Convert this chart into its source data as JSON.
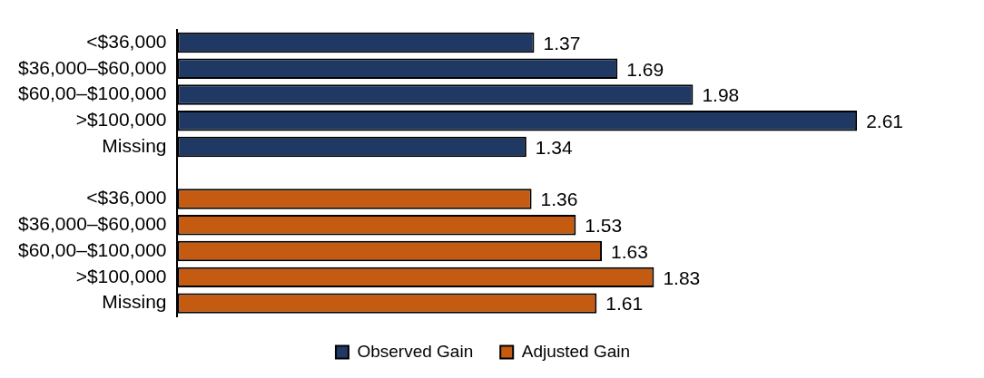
{
  "chart_data": {
    "type": "bar",
    "orientation": "horizontal",
    "categories": [
      "<$36,000",
      "$36,000–$60,000",
      "$60,00–$100,000",
      ">$100,000",
      "Missing",
      null,
      "<$36,000",
      "$36,000–$60,000",
      "$60,00–$100,000",
      ">$100,000",
      "Missing"
    ],
    "series": [
      {
        "name": "Observed Gain",
        "color": "#1f3864",
        "values": [
          1.37,
          1.69,
          1.98,
          2.61,
          1.34,
          null,
          null,
          null,
          null,
          null,
          null
        ]
      },
      {
        "name": "Adjusted Gain",
        "color": "#c55a11",
        "values": [
          null,
          null,
          null,
          null,
          null,
          null,
          1.36,
          1.53,
          1.63,
          1.83,
          1.61
        ]
      }
    ],
    "data_labels": true,
    "legend": "bottom",
    "grid": false
  }
}
